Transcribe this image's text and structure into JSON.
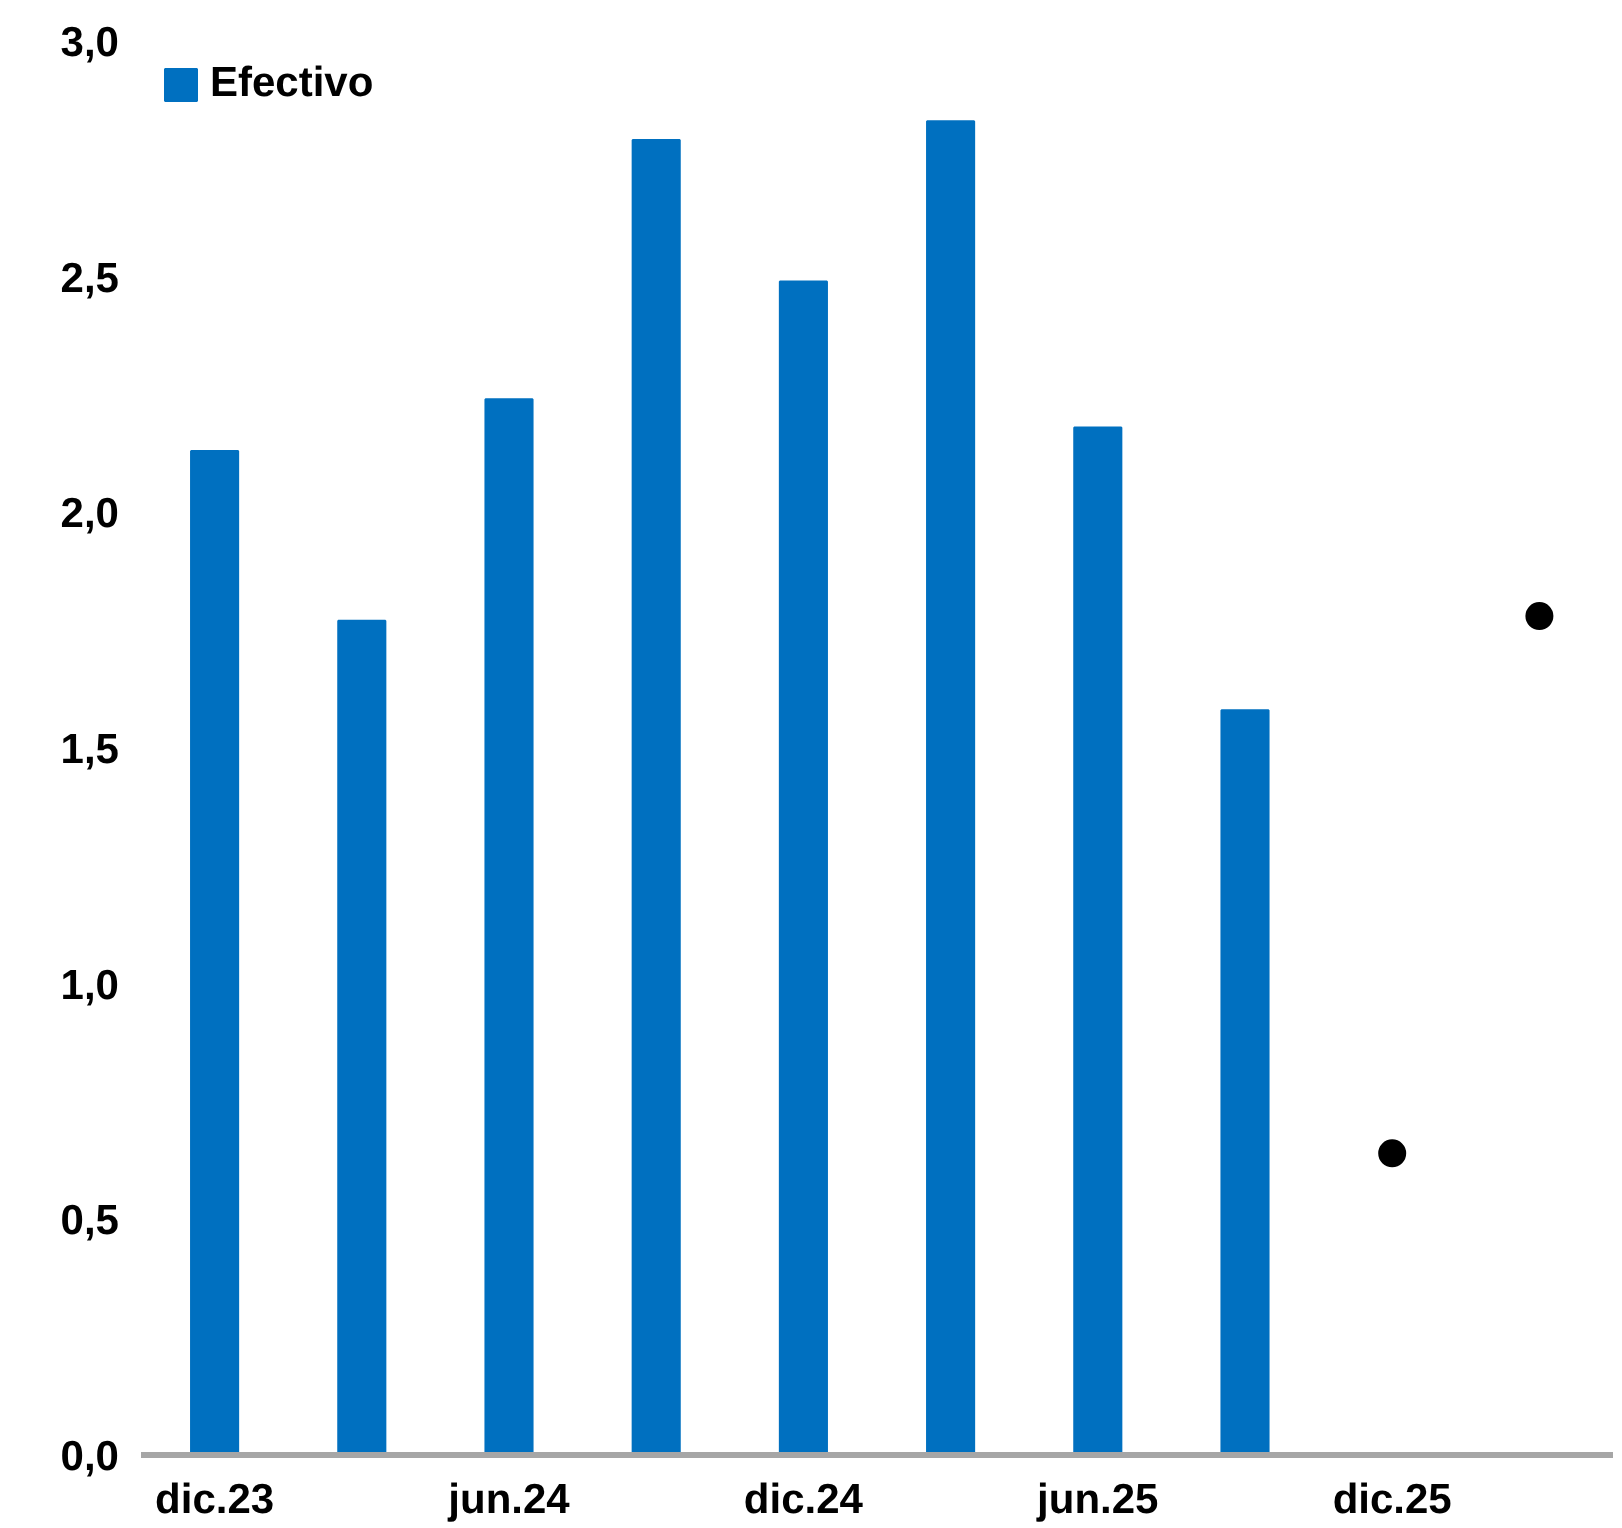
{
  "chart_data": {
    "type": "bar",
    "categories": [
      "dic.23",
      null,
      "jun.24",
      null,
      "dic.24",
      null,
      "jun.25",
      null,
      "dic.25",
      null
    ],
    "series": [
      {
        "name": "Efectivo",
        "color": "#0070c0",
        "values": [
          2.13,
          1.77,
          2.24,
          2.79,
          2.49,
          2.83,
          2.18,
          1.58,
          null,
          null
        ]
      },
      {
        "type": "scatter",
        "color": "#000000",
        "values": [
          null,
          null,
          null,
          null,
          null,
          null,
          null,
          null,
          0.64,
          1.78
        ]
      }
    ],
    "ylim": [
      0,
      3.0
    ],
    "yticks": [
      {
        "value": 0,
        "label": "0,0"
      },
      {
        "value": 0.5,
        "label": "0,5"
      },
      {
        "value": 1.0,
        "label": "1,0"
      },
      {
        "value": 1.5,
        "label": "1,5"
      },
      {
        "value": 2.0,
        "label": "2,0"
      },
      {
        "value": 2.5,
        "label": "2,5"
      },
      {
        "value": 3.0,
        "label": "3,0"
      }
    ],
    "grid": false,
    "legend": "top left",
    "marker": "circle"
  }
}
